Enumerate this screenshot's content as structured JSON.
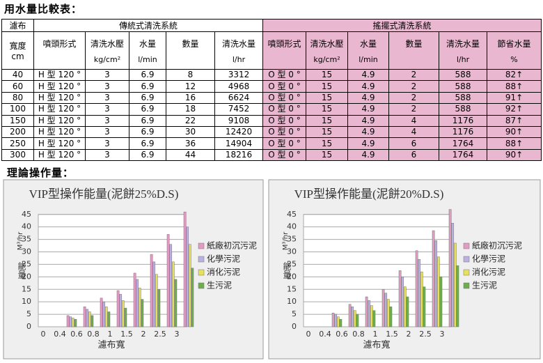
{
  "header": {
    "title": "用水量比較表："
  },
  "table": {
    "first_column": {
      "label": "濾布",
      "sublabel": "寬度",
      "unit": "cm"
    },
    "groups": [
      {
        "name": "傳統式清洗系統",
        "columns": [
          {
            "label": "噴頭形式"
          },
          {
            "label": "清洗水壓",
            "unit": "kg/cm²"
          },
          {
            "label": "水量",
            "unit": "l/min"
          },
          {
            "label": "數量"
          },
          {
            "label": "清洗水量",
            "unit": "l/hr"
          }
        ]
      },
      {
        "name": "搖擺式清洗系統",
        "columns": [
          {
            "label": "噴頭形式"
          },
          {
            "label": "清洗水壓",
            "unit": "kg/cm²"
          },
          {
            "label": "水量",
            "unit": "l/min"
          },
          {
            "label": "數量"
          },
          {
            "label": "清洗水量",
            "unit": "l/hr"
          },
          {
            "label": "節省水量",
            "unit": "%"
          }
        ]
      }
    ],
    "rows": [
      [
        40,
        "H 型 120 °",
        3,
        6.9,
        8,
        3312,
        "O 型 0 °",
        15,
        4.9,
        2,
        588,
        "82↑"
      ],
      [
        60,
        "H 型 120 °",
        3,
        6.9,
        12,
        4968,
        "O 型 0 °",
        15,
        4.9,
        2,
        588,
        "88↑"
      ],
      [
        80,
        "H 型 120 °",
        3,
        6.9,
        16,
        6624,
        "O 型 0 °",
        15,
        4.9,
        2,
        588,
        "91↑"
      ],
      [
        100,
        "H 型 120 °",
        3,
        6.9,
        18,
        7452,
        "O 型 0 °",
        15,
        4.9,
        2,
        588,
        "92↑"
      ],
      [
        150,
        "H 型 120 °",
        3,
        6.9,
        22,
        9108,
        "O 型 0 °",
        15,
        4.9,
        4,
        1176,
        "87↑"
      ],
      [
        200,
        "H 型 120 °",
        3,
        6.9,
        30,
        12420,
        "O 型 0 °",
        15,
        4.9,
        4,
        1176,
        "90↑"
      ],
      [
        250,
        "H 型 120 °",
        3,
        6.9,
        36,
        14904,
        "O 型 0 °",
        15,
        4.9,
        6,
        1764,
        "88↑"
      ],
      [
        300,
        "H 型 120 °",
        3,
        6.9,
        44,
        18216,
        "O 型 0 °",
        15,
        4.9,
        6,
        1764,
        "90↑"
      ]
    ]
  },
  "section_title": "理論操作量：",
  "chart_data": [
    {
      "type": "bar",
      "title": "VIP型操作能量(泥餅25%D.S)",
      "x_label": "濾布寬",
      "y_label": "能量",
      "y_unit": "M³/hr",
      "categories": [
        0,
        0.4,
        0.6,
        0.8,
        1,
        1.5,
        2,
        2.5,
        3
      ],
      "series": [
        {
          "name": "紙廠初沉污泥",
          "color": "#e59ac4",
          "values": [
            null,
            4.5,
            8,
            11.5,
            14.5,
            21.5,
            29,
            37,
            46
          ]
        },
        {
          "name": "化學污泥",
          "color": "#bcb0e2",
          "values": [
            null,
            4,
            7,
            10,
            13,
            19,
            26,
            33,
            40
          ]
        },
        {
          "name": "消化污泥",
          "color": "#e6e05a",
          "values": [
            null,
            3.5,
            6,
            8,
            10.5,
            15.5,
            21,
            26,
            33
          ]
        },
        {
          "name": "生污泥",
          "color": "#6cae4c",
          "values": [
            null,
            3,
            4.5,
            6,
            7.5,
            11,
            15,
            19,
            23.5
          ]
        }
      ],
      "ylim": [
        0,
        48
      ],
      "yticks": [
        0,
        5,
        10,
        15,
        20,
        25,
        30,
        35,
        40,
        45
      ],
      "grid": true
    },
    {
      "type": "bar",
      "title": "VIP型操作能量(泥餅20%D.S)",
      "x_label": "濾布寬",
      "y_label": "能量",
      "y_unit": "M³/hr",
      "categories": [
        0,
        0.4,
        0.6,
        0.8,
        1,
        1.5,
        2,
        2.5,
        3
      ],
      "series": [
        {
          "name": "紙廠初沉污泥",
          "color": "#e59ac4",
          "values": [
            null,
            5.5,
            9,
            12,
            15,
            22.5,
            30.5,
            38.5,
            47
          ]
        },
        {
          "name": "化學污泥",
          "color": "#bcb0e2",
          "values": [
            null,
            5,
            8,
            10.5,
            13.5,
            20,
            27,
            34.5,
            41.5
          ]
        },
        {
          "name": "消化污泥",
          "color": "#e6e05a",
          "values": [
            null,
            4,
            6.5,
            8.5,
            11,
            16,
            22,
            28,
            33.5
          ]
        },
        {
          "name": "生污泥",
          "color": "#6cae4c",
          "values": [
            null,
            3,
            5,
            6.5,
            8,
            12,
            16,
            20,
            24.5
          ]
        }
      ],
      "ylim": [
        0,
        48
      ],
      "yticks": [
        0,
        5,
        10,
        15,
        20,
        25,
        30,
        35,
        40,
        45
      ],
      "grid": true
    }
  ]
}
